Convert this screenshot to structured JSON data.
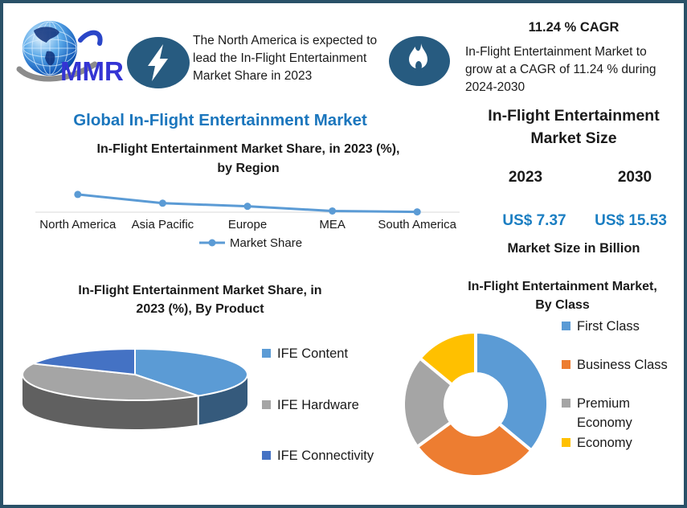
{
  "meta": {
    "colors": {
      "frame_border": "#2a5168",
      "badge_blue": "#275b80",
      "accent_blue": "#1b76bd",
      "value_blue": "#1b7ec2",
      "text": "#1a1a1a",
      "logo_text_blue": "#3434d4"
    }
  },
  "logo": {
    "text": "MMR"
  },
  "header": {
    "highlight": {
      "lines": [
        "The North America is expected to",
        "lead the In-Flight Entertainment",
        "Market Share in 2023"
      ]
    },
    "cagr": {
      "title": "11.24 % CAGR",
      "lines": [
        "In-Flight Entertainment Market to",
        "grow at a CAGR of 11.24 % during",
        "2024-2030"
      ]
    }
  },
  "main_title": "Global In-Flight Entertainment Market",
  "market_size_panel": {
    "title_lines": [
      "In-Flight Entertainment",
      "Market Size"
    ],
    "columns": [
      {
        "year": "2023",
        "value": "US$ 7.37"
      },
      {
        "year": "2030",
        "value": "US$ 15.53"
      }
    ],
    "note": "Market Size in Billion"
  },
  "chart_data": [
    {
      "type": "line",
      "title": "In-Flight Entertainment Market Share, in 2023 (%), by Region",
      "title_lines": [
        "In-Flight Entertainment Market Share, in 2023 (%),",
        "by Region"
      ],
      "categories": [
        "North America",
        "Asia Pacific",
        "Europe",
        "MEA",
        "South America"
      ],
      "series": [
        {
          "name": "Market Share",
          "values": [
            28.5,
            14.5,
            9.5,
            2,
            0.5
          ]
        }
      ],
      "ylim": [
        0,
        40
      ],
      "grid": false,
      "legend_position": "bottom",
      "color": "#5b9bd5",
      "axis_color": "#d9d9d9",
      "note": "y-axis not labeled in source; values estimated from marker positions"
    },
    {
      "type": "pie",
      "variant": "3d",
      "title": "In-Flight Entertainment Market Share, in 2023 (%), By Product",
      "title_lines": [
        "In-Flight Entertainment Market Share, in",
        "2023 (%), By Product"
      ],
      "labels": [
        "IFE Content",
        "IFE Hardware",
        "IFE Connectivity"
      ],
      "values": [
        40.5,
        41.5,
        18
      ],
      "colors": [
        "#5b9bd5",
        "#a5a5a5",
        "#4472c4"
      ],
      "legend_position": "right",
      "note": "no data labels shown; slice sizes estimated from pixels"
    },
    {
      "type": "donut",
      "title": "In-Flight Entertainment Market, By Class",
      "title_lines": [
        "In-Flight Entertainment Market,",
        "By Class"
      ],
      "labels": [
        "First Class",
        "Business Class",
        "Premium Economy",
        "Economy"
      ],
      "values": [
        36,
        29,
        21,
        14
      ],
      "colors": [
        "#5b9bd5",
        "#ed7d31",
        "#a5a5a5",
        "#ffc000"
      ],
      "legend_position": "right",
      "note": "no data labels shown; slice sizes estimated from pixels"
    }
  ]
}
